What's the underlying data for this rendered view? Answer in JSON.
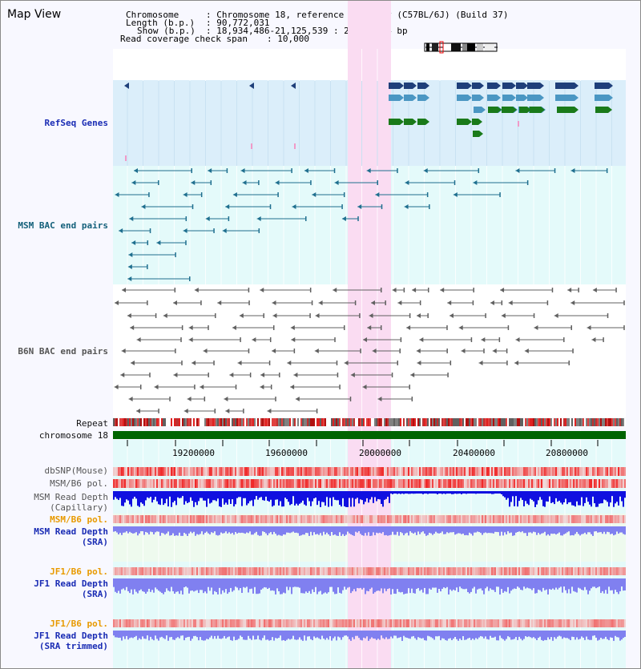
{
  "view_title": "Map View",
  "header": {
    "chromosome_label": "Chromosome",
    "chromosome_value": ": Chromosome 18, reference assembly (C57BL/6J) (Build 37)",
    "length_label": "Length (b.p.)",
    "length_value": ": 90,772,031",
    "show_label": "Show (b.p.)",
    "show_value": ": 18,934,486-21,125,539 : 2,191,054 bp",
    "coverage_label": "Read coverage check span",
    "coverage_value": ": 10,000"
  },
  "tracks": {
    "refseq": "RefSeq Genes",
    "msm_bac": "MSM BAC end pairs",
    "b6n_bac": "B6N BAC end pairs",
    "repeat": "Repeat",
    "chromosome": "chromosome 18",
    "dbsnp": "dbSNP(Mouse)",
    "msm_b6_pol": "MSM/B6 pol.",
    "msm_depth_cap_1": "MSM Read Depth",
    "msm_depth_cap_2": "(Capillary)",
    "msm_b6_pol_sra": "MSM/B6 pol.",
    "msm_depth_sra_1": "MSM Read Depth",
    "msm_depth_sra_2": "(SRA)",
    "jf1_b6_pol": "JF1/B6 pol.",
    "jf1_depth_sra_1": "JF1 Read Depth",
    "jf1_depth_sra_2": "(SRA)",
    "jf1_b6_pol_trim": "JF1/B6 pol.",
    "jf1_depth_trim_1": "JF1 Read Depth",
    "jf1_depth_trim_2": "(SRA trimmed)"
  },
  "axis_ticks": [
    "19200000",
    "19600000",
    "20000000",
    "20400000",
    "20800000"
  ],
  "colors": {
    "refseq_bg": "#dbeefa",
    "msm_bg": "#e4fafa",
    "highlight": "#fadcf2",
    "chromosome_bar": "#006400",
    "refseq_navy": "#1f3f7a",
    "refseq_steel": "#4b97c3",
    "refseq_green": "#1a7a1a",
    "msm_bac": "#1f6f8f",
    "b6n_bac": "#606060",
    "depth_blue": "#1010e0",
    "depth_light": "#8080f0",
    "snp_red": "#e03030"
  }
}
